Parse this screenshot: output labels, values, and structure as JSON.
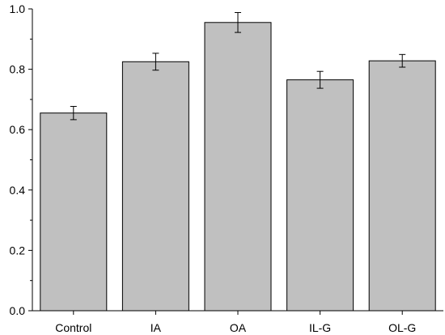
{
  "chart_data": {
    "type": "bar",
    "title": "",
    "xlabel": "",
    "ylabel": "",
    "categories": [
      "Control",
      "IA",
      "OA",
      "IL-G",
      "OL-G"
    ],
    "values": [
      0.655,
      0.825,
      0.955,
      0.765,
      0.828
    ],
    "errors": [
      0.022,
      0.028,
      0.033,
      0.028,
      0.021
    ],
    "ylim": [
      0,
      1.0
    ],
    "yticks": [
      "0.0",
      "0.2",
      "0.4",
      "0.6",
      "0.8",
      "1.0"
    ],
    "ytick_values": [
      0,
      0.2,
      0.4,
      0.6,
      0.8,
      1.0
    ],
    "grid": false,
    "legend": "none",
    "bar_color": "#c0c0c0",
    "edge_color": "#000000"
  }
}
